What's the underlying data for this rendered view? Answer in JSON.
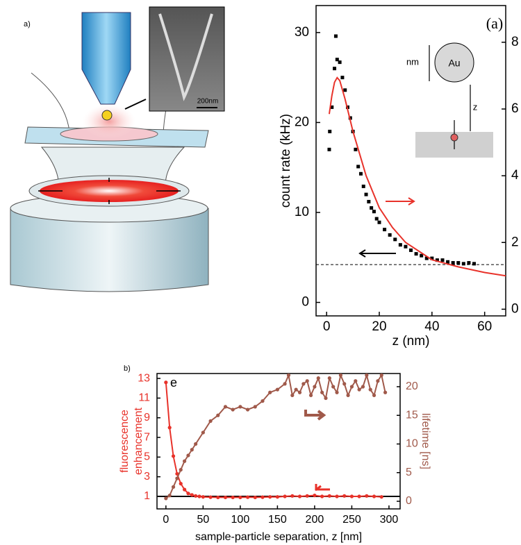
{
  "figure": {
    "panel_a": "a)",
    "panel_b": "b)",
    "scale_bar": "200nm"
  },
  "chart_data": [
    {
      "type": "scatter",
      "ylabel": "count rate (kHz)",
      "xlabel": "z (nm)",
      "annotation": "(a)",
      "inset_labels": [
        "Au",
        "z",
        "nm"
      ],
      "xlim": [
        -4,
        68
      ],
      "xticks": [
        0,
        20,
        40,
        60
      ],
      "ylim": [
        -1.5,
        33
      ],
      "yticks": [
        0,
        10,
        20,
        30
      ],
      "y2lim": [
        -0.2,
        9.1
      ],
      "y2ticks": [
        0,
        2,
        4,
        6,
        8
      ],
      "baseline": 4.2,
      "series": [
        {
          "type": "scatter",
          "color": "#000000",
          "x": [
            1,
            1.2,
            2,
            3,
            3.5,
            4,
            5,
            6,
            7,
            8,
            9,
            10,
            11,
            12,
            13,
            14,
            15,
            16,
            17,
            18,
            19,
            20,
            22,
            24,
            26,
            28,
            30,
            32,
            34,
            36,
            38,
            40,
            42,
            44,
            46,
            48,
            50,
            52,
            54,
            56
          ],
          "values": [
            17.0,
            19.0,
            21.7,
            26.0,
            29.6,
            27.0,
            26.7,
            25.0,
            23.6,
            21.7,
            20.5,
            19.0,
            17.0,
            15.1,
            14.3,
            12.9,
            12.0,
            11.2,
            10.5,
            10.1,
            9.3,
            8.9,
            8.1,
            7.5,
            7.0,
            6.4,
            6.2,
            5.8,
            5.4,
            5.2,
            4.9,
            4.9,
            4.7,
            4.7,
            4.5,
            4.4,
            4.4,
            4.3,
            4.4,
            4.3
          ]
        },
        {
          "type": "line",
          "color": "#e8322a",
          "axis": "y2",
          "x": [
            1,
            2,
            3,
            4,
            5,
            7,
            10,
            15,
            20,
            25,
            30,
            40,
            50,
            60,
            68
          ],
          "values": [
            5.85,
            6.4,
            6.8,
            6.94,
            6.85,
            6.3,
            5.33,
            4.0,
            3.04,
            2.45,
            2.0,
            1.48,
            1.27,
            1.1,
            1.0
          ]
        }
      ]
    },
    {
      "type": "line",
      "ylabel": [
        "fluorescence",
        "enhancement"
      ],
      "y2label": "lifetime [ns]",
      "xlabel": "sample-particle separation, z [nm]",
      "annotation": "e",
      "xlim": [
        -12,
        315
      ],
      "xticks": [
        0,
        50,
        100,
        150,
        200,
        250,
        300
      ],
      "ylim": [
        -0.27,
        13.5
      ],
      "yticks": [
        1,
        3,
        5,
        7,
        9,
        11,
        13
      ],
      "y2lim": [
        -1.33,
        22.3
      ],
      "y2ticks": [
        0,
        5,
        10,
        15,
        20
      ],
      "baseline": 1,
      "series": [
        {
          "type": "line",
          "color": "#e8322a",
          "x": [
            0,
            5,
            10,
            15,
            20,
            25,
            30,
            35,
            40,
            45,
            50,
            60,
            70,
            80,
            90,
            100,
            110,
            120,
            130,
            140,
            150,
            160,
            170,
            180,
            190,
            200,
            210,
            220,
            230,
            240,
            250,
            260,
            270,
            280,
            290
          ],
          "values": [
            12.6,
            8.0,
            5.1,
            3.3,
            2.3,
            1.7,
            1.3,
            1.15,
            1.05,
            1.0,
            0.95,
            0.92,
            0.9,
            0.9,
            0.9,
            0.9,
            0.92,
            0.9,
            0.92,
            0.95,
            0.95,
            1.0,
            1.05,
            1.0,
            1.05,
            1.1,
            1.0,
            1.05,
            1.0,
            1.05,
            1.0,
            1.0,
            1.05,
            1.0,
            0.95
          ]
        },
        {
          "type": "line",
          "color": "#a0594a",
          "axis": "y2",
          "x": [
            0,
            5,
            10,
            15,
            20,
            25,
            30,
            35,
            40,
            50,
            60,
            70,
            80,
            90,
            100,
            110,
            120,
            130,
            140,
            150,
            160,
            165,
            170,
            175,
            180,
            185,
            190,
            195,
            200,
            205,
            210,
            215,
            220,
            225,
            230,
            235,
            240,
            245,
            250,
            255,
            260,
            265,
            270,
            275,
            280,
            285,
            290,
            295
          ],
          "values": [
            0.5,
            1.0,
            2.5,
            4.0,
            5.5,
            7.0,
            8.0,
            9.0,
            10.0,
            12.0,
            14.0,
            15.0,
            16.5,
            16.0,
            16.5,
            16.0,
            16.5,
            17.5,
            19.0,
            19.5,
            20.5,
            22.0,
            18.5,
            19.5,
            19.0,
            20.5,
            21.0,
            18.5,
            20.0,
            21.5,
            19.0,
            18.0,
            21.5,
            20.0,
            19.0,
            22.0,
            20.5,
            18.5,
            20.0,
            21.0,
            19.5,
            20.0,
            22.0,
            19.5,
            18.5,
            21.0,
            22.0,
            19.0
          ]
        }
      ]
    }
  ]
}
